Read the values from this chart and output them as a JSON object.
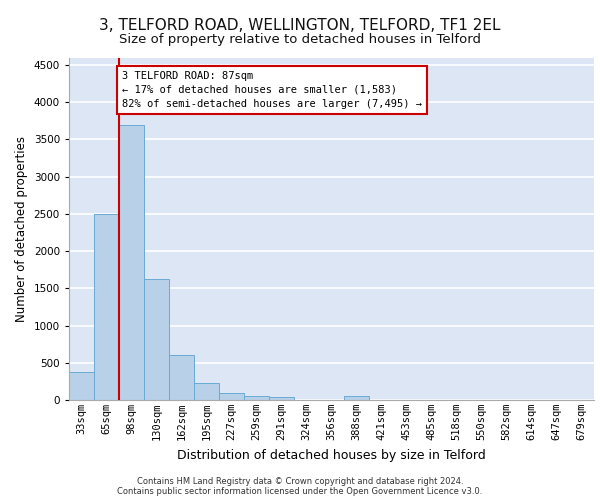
{
  "title1": "3, TELFORD ROAD, WELLINGTON, TELFORD, TF1 2EL",
  "title2": "Size of property relative to detached houses in Telford",
  "xlabel": "Distribution of detached houses by size in Telford",
  "ylabel": "Number of detached properties",
  "categories": [
    "33sqm",
    "65sqm",
    "98sqm",
    "130sqm",
    "162sqm",
    "195sqm",
    "227sqm",
    "259sqm",
    "291sqm",
    "324sqm",
    "356sqm",
    "388sqm",
    "421sqm",
    "453sqm",
    "485sqm",
    "518sqm",
    "550sqm",
    "582sqm",
    "614sqm",
    "647sqm",
    "679sqm"
  ],
  "values": [
    370,
    2500,
    3700,
    1630,
    600,
    225,
    100,
    60,
    40,
    0,
    0,
    50,
    0,
    0,
    0,
    0,
    0,
    0,
    0,
    0,
    0
  ],
  "bar_color": "#b8d0e8",
  "bar_edge_color": "#6aaad4",
  "background_color": "#dce6f5",
  "grid_color": "#ffffff",
  "vline_x": 1.5,
  "vline_color": "#cc0000",
  "annotation_text": "3 TELFORD ROAD: 87sqm\n← 17% of detached houses are smaller (1,583)\n82% of semi-detached houses are larger (7,495) →",
  "annotation_box_color": "#ffffff",
  "annotation_box_edge": "#cc0000",
  "ylim": [
    0,
    4600
  ],
  "yticks": [
    0,
    500,
    1000,
    1500,
    2000,
    2500,
    3000,
    3500,
    4000,
    4500
  ],
  "footnote1": "Contains HM Land Registry data © Crown copyright and database right 2024.",
  "footnote2": "Contains public sector information licensed under the Open Government Licence v3.0.",
  "title1_fontsize": 11,
  "title2_fontsize": 9.5,
  "tick_fontsize": 7.5,
  "ylabel_fontsize": 8.5,
  "xlabel_fontsize": 9,
  "annot_fontsize": 7.5,
  "footnote_fontsize": 6
}
